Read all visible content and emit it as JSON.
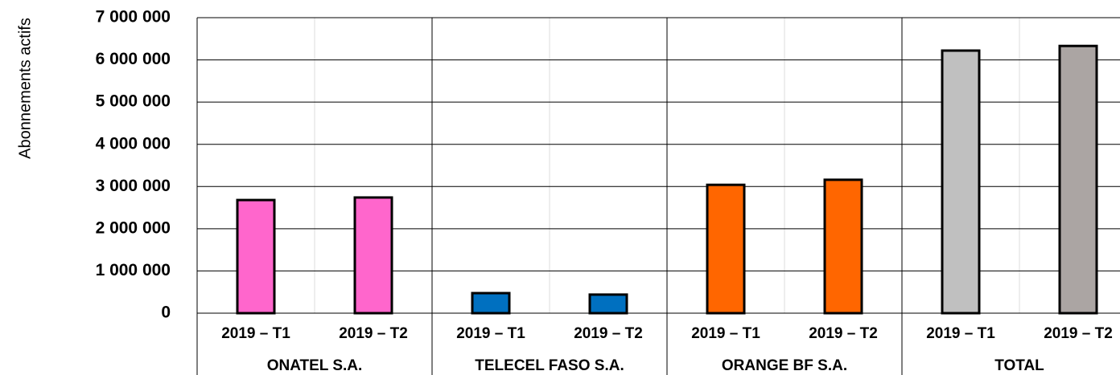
{
  "chart_data": {
    "type": "bar",
    "y_axis_label": "Abonnements actifs",
    "groups": [
      "ONATEL S.A.",
      "TELECEL FASO S.A.",
      "ORANGE BF S.A.",
      "TOTAL"
    ],
    "categories": [
      "2019 – T1",
      "2019 – T2",
      "2019 – T1",
      "2019 – T2",
      "2019 – T1",
      "2019 – T2",
      "2019 – T1",
      "2019 – T2"
    ],
    "values": [
      2680000,
      2740000,
      475000,
      440000,
      3040000,
      3160000,
      6220000,
      6330000
    ],
    "colors": [
      "#ff66cc",
      "#ff66cc",
      "#0070c0",
      "#0070c0",
      "#ff6600",
      "#ff6600",
      "#c0c0c0",
      "#aba5a3"
    ],
    "ylim": [
      0,
      7000000
    ],
    "yticks": [
      {
        "value": 0,
        "label": "0"
      },
      {
        "value": 1000000,
        "label": "1 000 000"
      },
      {
        "value": 2000000,
        "label": "2 000 000"
      },
      {
        "value": 3000000,
        "label": "3 000 000"
      },
      {
        "value": 4000000,
        "label": "4 000 000"
      },
      {
        "value": 5000000,
        "label": "5 000 000"
      },
      {
        "value": 6000000,
        "label": "6 000 000"
      },
      {
        "value": 7000000,
        "label": "7 000 000"
      }
    ],
    "grid": true
  }
}
